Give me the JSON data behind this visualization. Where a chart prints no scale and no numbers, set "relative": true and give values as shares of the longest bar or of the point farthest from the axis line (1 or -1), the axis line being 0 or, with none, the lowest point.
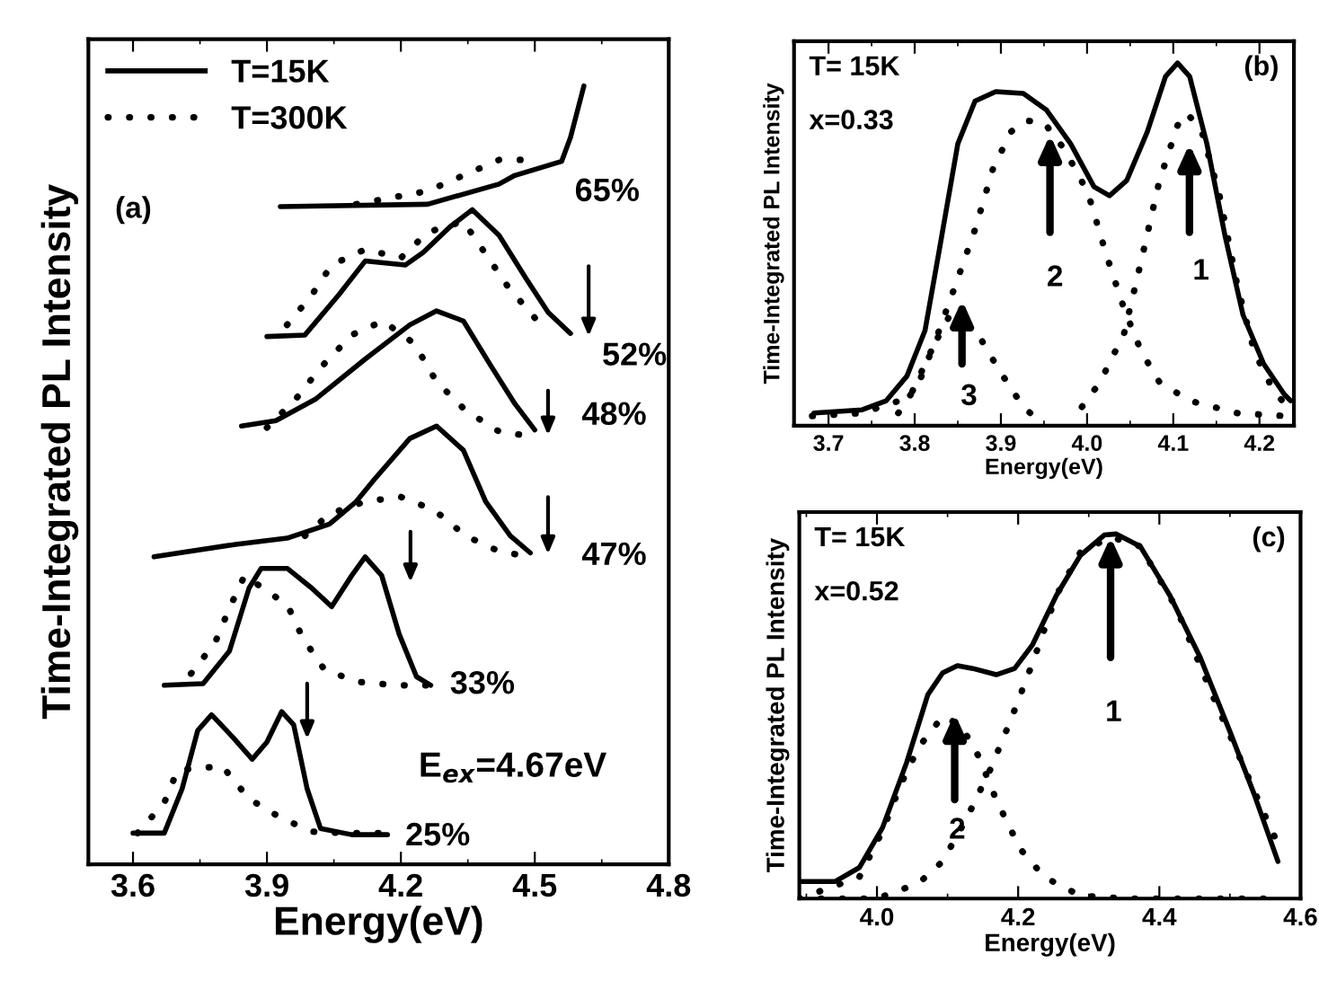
{
  "chart_data": [
    {
      "type": "line",
      "relative": true,
      "xlabel": "Energy(eV)",
      "ylabel": "Time-Integrated PL Intensity",
      "xlim": [
        3.5,
        4.8
      ],
      "xticks": [
        3.6,
        3.9,
        4.2,
        4.5,
        4.8
      ],
      "legend": "top left",
      "tick_labels": "x",
      "annotations": [
        "(a)",
        "E$_{ex}$=4.67eV",
        "65%",
        "52%",
        "48%",
        "47%",
        "33%",
        "25%"
      ],
      "series": [
        {
          "name": "T=15K",
          "color": "#000000",
          "line_style": "solid",
          "x": [
            3.93,
            4.26,
            4.42,
            4.455,
            4.56,
            4.58,
            4.61
          ],
          "values": [
            0.845,
            0.848,
            0.874,
            0.885,
            0.903,
            0.934,
            1.0
          ]
        },
        {
          "name": "T=300K",
          "color": "#000000",
          "line_style": "dotted",
          "x": [
            4.1,
            4.26,
            4.34,
            4.42,
            4.49
          ],
          "values": [
            0.848,
            0.865,
            0.885,
            0.905,
            0.905
          ]
        },
        {
          "color": "#000000",
          "line_style": "solid",
          "x": [
            3.9,
            3.985,
            4.06,
            4.12,
            4.21,
            4.25,
            4.31,
            4.36,
            4.42,
            4.48,
            4.53,
            4.58
          ],
          "values": [
            0.678,
            0.68,
            0.731,
            0.775,
            0.77,
            0.786,
            0.819,
            0.841,
            0.808,
            0.753,
            0.709,
            0.682
          ]
        },
        {
          "color": "#000000",
          "line_style": "dotted",
          "x": [
            3.945,
            4.0,
            4.045,
            4.12,
            4.2,
            4.26,
            4.34,
            4.39,
            4.44,
            4.5
          ],
          "values": [
            0.693,
            0.731,
            0.77,
            0.79,
            0.779,
            0.812,
            0.826,
            0.784,
            0.742,
            0.702
          ]
        },
        {
          "color": "#000000",
          "line_style": "solid",
          "x": [
            3.843,
            3.92,
            4.01,
            4.12,
            4.22,
            4.28,
            4.34,
            4.4,
            4.455,
            4.5
          ],
          "values": [
            0.563,
            0.57,
            0.598,
            0.649,
            0.693,
            0.711,
            0.698,
            0.642,
            0.592,
            0.558
          ]
        },
        {
          "color": "#000000",
          "line_style": "dotted",
          "x": [
            3.9,
            3.965,
            4.02,
            4.09,
            4.16,
            4.23,
            4.28,
            4.345,
            4.42,
            4.49
          ],
          "values": [
            0.561,
            0.598,
            0.638,
            0.68,
            0.698,
            0.669,
            0.62,
            0.583,
            0.556,
            0.55
          ]
        },
        {
          "color": "#000000",
          "line_style": "solid",
          "x": [
            3.647,
            3.83,
            3.945,
            4.04,
            4.1,
            4.14,
            4.22,
            4.28,
            4.34,
            4.39,
            4.445,
            4.49
          ],
          "values": [
            0.395,
            0.411,
            0.419,
            0.437,
            0.466,
            0.494,
            0.547,
            0.563,
            0.532,
            0.466,
            0.422,
            0.4
          ]
        },
        {
          "color": "#000000",
          "line_style": "dotted",
          "x": [
            3.985,
            4.04,
            4.12,
            4.2,
            4.275,
            4.345,
            4.42,
            4.49
          ],
          "values": [
            0.422,
            0.45,
            0.466,
            0.472,
            0.455,
            0.422,
            0.402,
            0.395
          ]
        },
        {
          "color": "#000000",
          "line_style": "solid",
          "x": [
            3.67,
            3.757,
            3.816,
            3.86,
            3.887,
            3.946,
            4.0,
            4.045,
            4.09,
            4.12,
            4.157,
            4.196,
            4.235,
            4.267
          ],
          "values": [
            0.23,
            0.232,
            0.274,
            0.355,
            0.38,
            0.38,
            0.355,
            0.331,
            0.371,
            0.395,
            0.371,
            0.296,
            0.241,
            0.23
          ]
        },
        {
          "color": "#000000",
          "line_style": "dotted",
          "x": [
            3.73,
            3.784,
            3.816,
            3.85,
            3.946,
            3.98,
            4.03,
            4.11,
            4.19,
            4.26
          ],
          "values": [
            0.245,
            0.285,
            0.329,
            0.371,
            0.333,
            0.291,
            0.249,
            0.234,
            0.23,
            0.23
          ]
        },
        {
          "color": "#000000",
          "line_style": "solid",
          "x": [
            3.6,
            3.67,
            3.71,
            3.745,
            3.776,
            3.824,
            3.867,
            3.9,
            3.933,
            3.96,
            3.99,
            4.02,
            4.09,
            4.17
          ],
          "values": [
            0.04,
            0.04,
            0.097,
            0.172,
            0.192,
            0.163,
            0.135,
            0.157,
            0.196,
            0.179,
            0.097,
            0.046,
            0.038,
            0.038
          ]
        },
        {
          "color": "#000000",
          "line_style": "dotted",
          "x": [
            3.61,
            3.67,
            3.7,
            3.8,
            3.86,
            3.93,
            4.0,
            4.08,
            4.16
          ],
          "values": [
            0.04,
            0.079,
            0.121,
            0.126,
            0.084,
            0.06,
            0.042,
            0.04,
            0.04
          ]
        }
      ]
    },
    {
      "type": "line",
      "relative": true,
      "xlabel": "Energy(eV)",
      "ylabel": "Time-Integrated PL Intensity",
      "xlim": [
        3.66,
        4.24
      ],
      "xticks": [
        3.7,
        3.8,
        3.9,
        {
          "value": 4.0,
          "label": "4.0"
        },
        4.1,
        4.2
      ],
      "tick_labels": "x",
      "annotations": [
        "(b)",
        "T= 15K",
        "x=0.33",
        "1",
        "2",
        "3"
      ],
      "series": [
        {
          "color": "#000000",
          "line_style": "solid",
          "x": [
            3.683,
            3.739,
            3.767,
            3.791,
            3.812,
            3.829,
            3.85,
            3.87,
            3.894,
            3.926,
            3.953,
            3.981,
            4.008,
            4.026,
            4.046,
            4.07,
            4.091,
            4.105,
            4.119,
            4.139,
            4.16,
            4.181,
            4.205,
            4.229,
            4.236
          ],
          "values": [
            0.035,
            0.044,
            0.069,
            0.137,
            0.263,
            0.491,
            0.777,
            0.895,
            0.921,
            0.916,
            0.87,
            0.777,
            0.659,
            0.634,
            0.676,
            0.811,
            0.963,
            1.0,
            0.963,
            0.777,
            0.524,
            0.305,
            0.17,
            0.086,
            0.069
          ]
        },
        {
          "color": "#000000",
          "line_style": "dotted",
          "x": [
            3.781,
            3.805,
            3.822,
            3.839,
            3.857,
            3.877,
            3.898,
            3.926,
            3.946
          ],
          "values": [
            0.035,
            0.12,
            0.221,
            0.297,
            0.28,
            0.238,
            0.153,
            0.052,
            0.01
          ]
        },
        {
          "color": "#000000",
          "line_style": "dotted",
          "x": [
            3.681,
            3.739,
            3.794,
            3.822,
            3.85,
            3.87,
            3.891,
            3.912,
            3.929,
            3.95,
            3.974,
            4.001,
            4.022,
            4.043,
            4.063,
            4.084,
            4.119,
            4.174,
            4.229
          ],
          "values": [
            0.027,
            0.035,
            0.078,
            0.221,
            0.406,
            0.541,
            0.71,
            0.811,
            0.841,
            0.836,
            0.761,
            0.642,
            0.474,
            0.322,
            0.204,
            0.12,
            0.069,
            0.035,
            0.027
          ]
        },
        {
          "color": "#000000",
          "line_style": "dotted",
          "x": [
            3.994,
            4.015,
            4.043,
            4.063,
            4.084,
            4.105,
            4.115,
            4.132,
            4.153,
            4.174,
            4.194,
            4.215,
            4.232
          ],
          "values": [
            0.052,
            0.12,
            0.255,
            0.457,
            0.676,
            0.828,
            0.862,
            0.82,
            0.642,
            0.39,
            0.204,
            0.103,
            0.052
          ]
        }
      ]
    },
    {
      "type": "line",
      "relative": true,
      "xlabel": "Energy(eV)",
      "ylabel": "Time-Integrated PL Intensity",
      "xlim": [
        3.89,
        4.6
      ],
      "xticks": [
        {
          "value": 4.0,
          "label": "4.0"
        },
        4.2,
        4.4,
        4.6
      ],
      "tick_labels": "x",
      "annotations": [
        "(c)",
        "T= 15K",
        "x=0.52",
        "1",
        "2"
      ],
      "series": [
        {
          "color": "#000000",
          "line_style": "solid",
          "x": [
            3.89,
            3.941,
            3.975,
            4.008,
            4.042,
            4.072,
            4.093,
            4.114,
            4.136,
            4.169,
            4.195,
            4.22,
            4.254,
            4.288,
            4.322,
            4.339,
            4.373,
            4.415,
            4.458,
            4.5,
            4.534,
            4.568
          ],
          "values": [
            0.047,
            0.047,
            0.085,
            0.195,
            0.373,
            0.559,
            0.619,
            0.639,
            0.631,
            0.614,
            0.631,
            0.695,
            0.831,
            0.941,
            0.997,
            1.0,
            0.966,
            0.831,
            0.661,
            0.458,
            0.288,
            0.102
          ]
        },
        {
          "color": "#000000",
          "line_style": "dotted",
          "x": [
            3.89,
            3.975,
            4.008,
            4.034,
            4.059,
            4.093,
            4.119,
            4.144,
            4.169,
            4.203,
            4.237,
            4.288,
            4.356,
            4.568
          ],
          "values": [
            0.0,
            0.059,
            0.186,
            0.314,
            0.415,
            0.5,
            0.475,
            0.39,
            0.271,
            0.136,
            0.059,
            0.008,
            0.0,
            0.0
          ]
        },
        {
          "color": "#000000",
          "line_style": "dotted",
          "x": [
            3.89,
            4.0,
            4.059,
            4.093,
            4.127,
            4.161,
            4.19,
            4.22,
            4.254,
            4.288,
            4.331,
            4.373,
            4.424,
            4.475,
            4.517,
            4.559,
            4.568
          ],
          "values": [
            0.0,
            0.0,
            0.042,
            0.102,
            0.22,
            0.356,
            0.492,
            0.644,
            0.831,
            0.949,
            0.992,
            0.966,
            0.797,
            0.559,
            0.373,
            0.186,
            0.153
          ]
        }
      ]
    }
  ]
}
